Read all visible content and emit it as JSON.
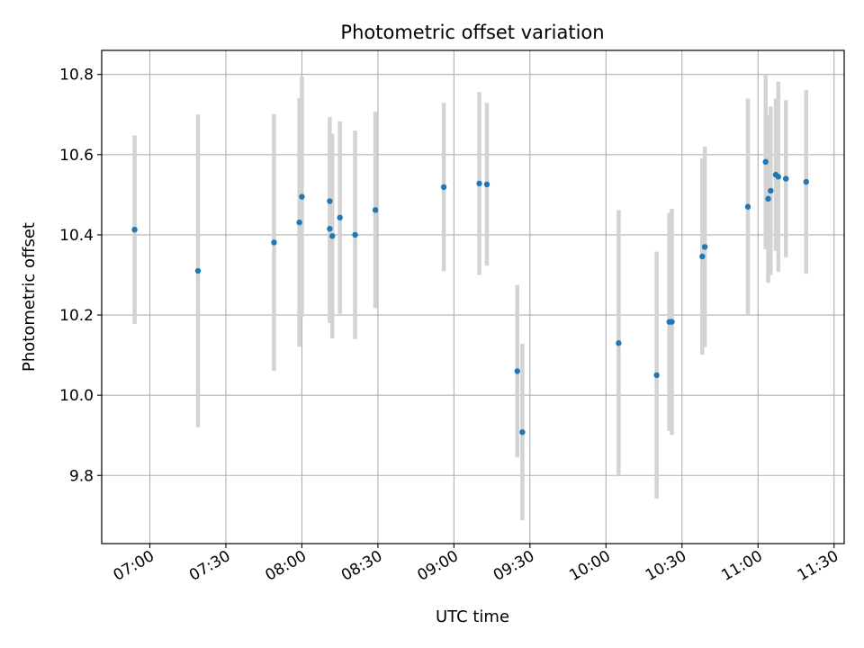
{
  "chart_data": {
    "type": "scatter",
    "title": "Photometric offset variation",
    "xlabel": "UTC time",
    "ylabel": "Photometric offset",
    "xlim": [
      "06:41",
      "11:34"
    ],
    "ylim": [
      9.63,
      10.86
    ],
    "x_ticks": [
      "07:00",
      "07:30",
      "08:00",
      "08:30",
      "09:00",
      "09:30",
      "10:00",
      "10:30",
      "11:00",
      "11:30"
    ],
    "y_ticks": [
      "9.8",
      "10.0",
      "10.2",
      "10.4",
      "10.6",
      "10.8"
    ],
    "grid": true,
    "colors": {
      "point": "#1f77b4",
      "errorbar": "#d3d3d3",
      "grid": "#b0b0b0"
    },
    "points": [
      {
        "time": "06:54",
        "y": 10.413,
        "err": 0.235
      },
      {
        "time": "07:19",
        "y": 10.31,
        "err": 0.39
      },
      {
        "time": "07:49",
        "y": 10.381,
        "err": 0.32
      },
      {
        "time": "07:59",
        "y": 10.431,
        "err": 0.31
      },
      {
        "time": "08:00",
        "y": 10.495,
        "err": 0.3
      },
      {
        "time": "08:11",
        "y": 10.484,
        "err": 0.21
      },
      {
        "time": "08:11",
        "y": 10.415,
        "err": 0.235
      },
      {
        "time": "08:12",
        "y": 10.397,
        "err": 0.255
      },
      {
        "time": "08:15",
        "y": 10.443,
        "err": 0.24
      },
      {
        "time": "08:21",
        "y": 10.4,
        "err": 0.26
      },
      {
        "time": "08:29",
        "y": 10.462,
        "err": 0.245
      },
      {
        "time": "08:56",
        "y": 10.519,
        "err": 0.21
      },
      {
        "time": "09:10",
        "y": 10.528,
        "err": 0.228
      },
      {
        "time": "09:13",
        "y": 10.526,
        "err": 0.203
      },
      {
        "time": "09:25",
        "y": 10.06,
        "err": 0.215
      },
      {
        "time": "09:27",
        "y": 9.908,
        "err": 0.22
      },
      {
        "time": "10:05",
        "y": 10.13,
        "err": 0.332
      },
      {
        "time": "10:20",
        "y": 10.05,
        "err": 0.308
      },
      {
        "time": "10:25",
        "y": 10.183,
        "err": 0.272
      },
      {
        "time": "10:26",
        "y": 10.183,
        "err": 0.282
      },
      {
        "time": "10:38",
        "y": 10.346,
        "err": 0.245
      },
      {
        "time": "10:39",
        "y": 10.37,
        "err": 0.25
      },
      {
        "time": "10:56",
        "y": 10.47,
        "err": 0.27
      },
      {
        "time": "11:03",
        "y": 10.582,
        "err": 0.218
      },
      {
        "time": "11:04",
        "y": 10.49,
        "err": 0.21
      },
      {
        "time": "11:05",
        "y": 10.51,
        "err": 0.21
      },
      {
        "time": "11:07",
        "y": 10.55,
        "err": 0.19
      },
      {
        "time": "11:08",
        "y": 10.545,
        "err": 0.237
      },
      {
        "time": "11:11",
        "y": 10.54,
        "err": 0.196
      },
      {
        "time": "11:19",
        "y": 10.532,
        "err": 0.229
      }
    ]
  }
}
